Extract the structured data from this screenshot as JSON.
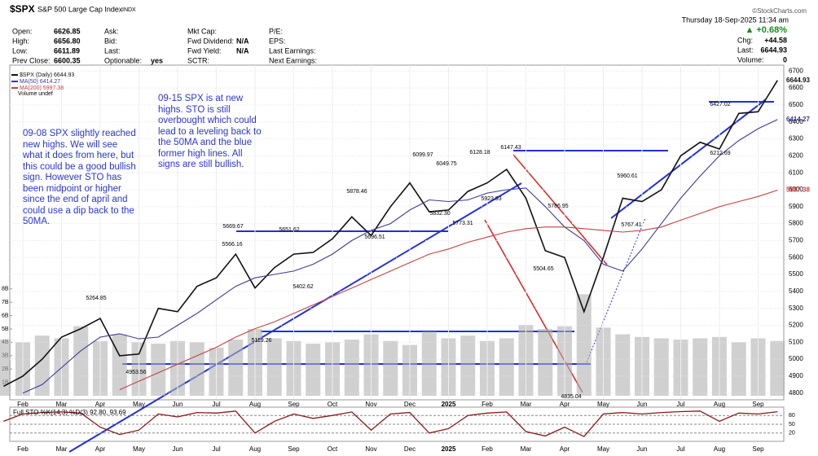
{
  "header": {
    "symbol": "$SPX",
    "name": "S&P 500 Large Cap Index",
    "exchange": "INDX",
    "date": "Thursday 18-Sep-2025 11:34 am",
    "source": "©StockCharts.com"
  },
  "quote": {
    "col1": [
      [
        "Open:",
        "6626.85"
      ],
      [
        "High:",
        "6656.80"
      ],
      [
        "Low:",
        "6611.89"
      ],
      [
        "Prev Close:",
        "6600.35"
      ]
    ],
    "col2": [
      [
        "Ask:",
        ""
      ],
      [
        "Bid:",
        ""
      ],
      [
        "Last:",
        ""
      ],
      [
        "Optionable:",
        "yes"
      ]
    ],
    "col3": [
      [
        "Mkt Cap:",
        ""
      ],
      [
        "Fwd Dividend:",
        "N/A"
      ],
      [
        "Fwd Yield:",
        "N/A"
      ],
      [
        "SCTR:",
        ""
      ]
    ],
    "col4": [
      [
        "P/E:"
      ],
      [
        "EPS:"
      ],
      [
        "Last Earnings:"
      ],
      [
        "Next Earnings:"
      ]
    ],
    "change_pct": "▲ +0.68%",
    "right": [
      [
        "Chg:",
        "+44.58"
      ],
      [
        "Last:",
        "6644.93"
      ],
      [
        "Volume:",
        "0"
      ]
    ]
  },
  "notes": [
    "09-08 SPX slightly reached new highs. We will see what it does from here, but this could be a good bullish sign. However STO has been midpoint or higher since the end of april and could use a dip back to the 50MA.",
    "09-15 SPX is at new highs. STO is still overbought which could lead to a leveling back to the 50MA and the blue former high lines. All signs are still bullish."
  ],
  "chart_data": {
    "type": "line",
    "categories": [
      null,
      "Feb",
      null,
      "Mar",
      null,
      "Apr",
      null,
      "May",
      null,
      "Jun",
      null,
      "Jul",
      null,
      "Aug",
      null,
      "Sep",
      null,
      "Oct",
      null,
      "Nov",
      null,
      "Dec",
      null,
      "2025",
      null,
      "Feb",
      null,
      "Mar",
      null,
      "Apr",
      null,
      "May",
      null,
      "Jun",
      null,
      "Jul",
      null,
      "Aug",
      null,
      "Sep",
      null
    ],
    "series": [
      {
        "name": "$SPX (Daily) 6644.93",
        "color": "#111111",
        "values": [
          4840,
          4900,
          5000,
          5130,
          5180,
          5240,
          5020,
          5030,
          5300,
          5280,
          5430,
          5480,
          5620,
          5420,
          5540,
          5620,
          5630,
          5710,
          5840,
          5730,
          5900,
          6040,
          5870,
          5880,
          5990,
          6040,
          6120,
          5950,
          5640,
          5600,
          5280,
          5600,
          5950,
          5930,
          6000,
          6200,
          6280,
          6240,
          6450,
          6460,
          6644.93
        ]
      },
      {
        "name": "MA(50) 6414.27",
        "color": "#3b3b9c",
        "values": [
          null,
          4800,
          4850,
          4950,
          5050,
          5130,
          5150,
          5120,
          5130,
          5200,
          5270,
          5350,
          5430,
          5480,
          5500,
          5520,
          5560,
          5620,
          5700,
          5760,
          5800,
          5880,
          5940,
          5930,
          5940,
          5980,
          6000,
          6010,
          5900,
          5780,
          5700,
          5560,
          5520,
          5650,
          5800,
          5950,
          6080,
          6200,
          6290,
          6360,
          6414.27
        ]
      },
      {
        "name": "MA(200) 5997.38",
        "color": "#c8413f",
        "values": [
          null,
          null,
          null,
          null,
          null,
          null,
          4820,
          4870,
          4920,
          4970,
          5020,
          5070,
          5130,
          5180,
          5220,
          5270,
          5320,
          5370,
          5420,
          5470,
          5520,
          5570,
          5620,
          5650,
          5690,
          5720,
          5750,
          5770,
          5780,
          5780,
          5770,
          5760,
          5750,
          5760,
          5780,
          5820,
          5860,
          5900,
          5930,
          5960,
          5997.38
        ]
      }
    ],
    "ylim": [
      4765,
      6735
    ],
    "yticks": [
      4800,
      4900,
      5000,
      5100,
      5200,
      5300,
      5400,
      5500,
      5600,
      5700,
      5800,
      5900,
      6000,
      6100,
      6200,
      6300,
      6400,
      6500,
      6600,
      6700
    ],
    "grid": true,
    "volume": {
      "name": "Volume undef",
      "color": "#b0b0b0",
      "values": [
        4.2,
        4.0,
        4.5,
        4.3,
        5.2,
        4.1,
        4.6,
        4.0,
        3.9,
        4.1,
        4.0,
        3.6,
        4.2,
        5.0,
        4.3,
        4.1,
        3.9,
        4.0,
        4.2,
        4.6,
        4.1,
        3.8,
        4.8,
        4.3,
        4.5,
        4.1,
        4.3,
        5.3,
        5.0,
        5.2,
        7.6,
        5.1,
        4.6,
        4.4,
        4.3,
        4.2,
        4.3,
        4.4,
        4.0,
        4.3,
        4.1
      ],
      "ylim": [
        0,
        8.9
      ],
      "yticks": [
        {
          "value": 1,
          "label": "1B"
        },
        {
          "value": 2,
          "label": "2B"
        },
        {
          "value": 3,
          "label": "3B"
        },
        {
          "value": 4,
          "label": "4B"
        },
        {
          "value": 5,
          "label": "5B"
        },
        {
          "value": 6,
          "label": "6B"
        },
        {
          "value": 7,
          "label": "7B"
        },
        {
          "value": 8,
          "label": "8B"
        }
      ]
    },
    "oscillator": {
      "name": "Full STO %K(14,3) %D(3) 92.80, 93.69",
      "color": "#8b1a1a",
      "values": [
        60,
        85,
        90,
        92,
        88,
        40,
        15,
        30,
        85,
        75,
        90,
        88,
        95,
        20,
        60,
        85,
        70,
        80,
        92,
        30,
        85,
        90,
        20,
        35,
        80,
        88,
        92,
        25,
        10,
        40,
        8,
        85,
        90,
        85,
        90,
        93,
        95,
        60,
        88,
        85,
        92.8
      ],
      "ylim": [
        0,
        100
      ],
      "yticks": [
        20,
        50,
        80
      ]
    },
    "annotations": [
      "5264.85",
      "4953.56",
      "5669.67",
      "5566.16",
      "5651.62",
      "5119.26",
      "5402.62",
      "5878.46",
      "5696.51",
      "6099.97",
      "6049.75",
      "5832.30",
      "5773.31",
      "6128.18",
      "6147.43",
      "5923.93",
      "5786.95",
      "5504.65",
      "4835.04",
      "5960.61",
      "5767.41",
      "6427.02",
      "6212.69"
    ]
  }
}
